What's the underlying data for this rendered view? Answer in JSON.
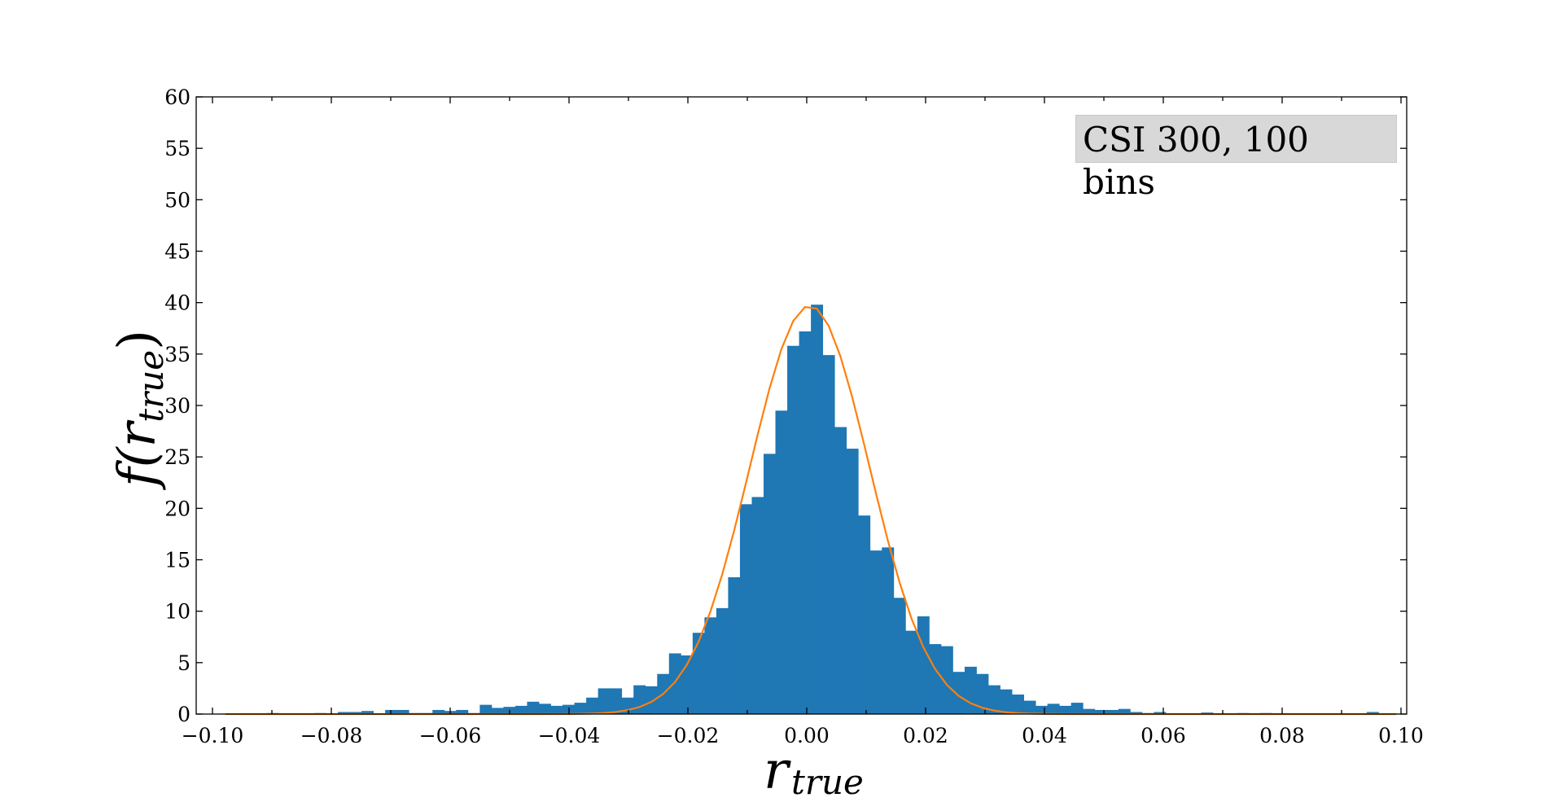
{
  "chart_data": {
    "type": "bar",
    "subtype": "histogram_with_fitted_normal",
    "annotation": "CSI 300, 100 bins",
    "xlabel": "r_true",
    "xlabel_main": "r",
    "xlabel_sub": "true",
    "ylabel": "f(r_true)",
    "ylabel_main": "f(r",
    "ylabel_sub": "true",
    "ylabel_close": ")",
    "xlim": [
      -0.103,
      0.101
    ],
    "ylim": [
      0,
      60
    ],
    "xticks": [
      -0.1,
      -0.08,
      -0.06,
      -0.04,
      -0.02,
      0.0,
      0.02,
      0.04,
      0.06,
      0.08,
      0.1
    ],
    "xtick_labels": [
      "−0.10",
      "−0.08",
      "−0.06",
      "−0.04",
      "−0.02",
      "0.00",
      "0.02",
      "0.04",
      "0.06",
      "0.08",
      "0.10"
    ],
    "yticks": [
      0,
      5,
      10,
      15,
      20,
      25,
      30,
      35,
      40,
      45,
      50,
      55,
      60
    ],
    "ytick_labels": [
      "0",
      "5",
      "10",
      "15",
      "20",
      "25",
      "30",
      "35",
      "40",
      "45",
      "50",
      "55",
      "60"
    ],
    "grid": false,
    "legend": null,
    "bins": {
      "count": 100,
      "first_edge": -0.0988,
      "width": 0.00199,
      "values": [
        0.05,
        0.0,
        0.05,
        0.05,
        0.1,
        0.05,
        0.0,
        0.05,
        0.1,
        0.05,
        0.2,
        0.2,
        0.3,
        0.0,
        0.4,
        0.4,
        0.1,
        0.1,
        0.4,
        0.3,
        0.4,
        0.1,
        0.9,
        0.6,
        0.7,
        0.8,
        1.2,
        1.0,
        0.8,
        0.9,
        1.1,
        1.6,
        2.5,
        2.5,
        1.6,
        2.8,
        2.7,
        3.9,
        5.9,
        5.7,
        7.9,
        9.4,
        10.3,
        13.3,
        20.4,
        21.1,
        25.3,
        29.5,
        35.8,
        37.2,
        39.8,
        34.9,
        27.9,
        25.8,
        19.3,
        15.9,
        16.2,
        11.3,
        8.1,
        9.5,
        6.8,
        6.6,
        4.1,
        4.6,
        3.9,
        2.8,
        2.4,
        1.9,
        1.3,
        0.8,
        1.0,
        0.8,
        1.1,
        0.5,
        0.4,
        0.4,
        0.5,
        0.2,
        0.1,
        0.2,
        0.0,
        0.05,
        0.0,
        0.15,
        0.0,
        0.05,
        0.1,
        0.0,
        0.1,
        0.0,
        0.05,
        0.0,
        0.0,
        0.05,
        0.0,
        0.05,
        0.0,
        0.2,
        0.0,
        0.05
      ],
      "color": "#1f77b4"
    },
    "fit_curve": {
      "type": "normal_pdf",
      "mean": 0.0005,
      "std": 0.01005,
      "peak": 39.7,
      "x_range": [
        -0.0978,
        0.0993
      ],
      "color": "#ff7f0e"
    },
    "series": [
      {
        "name": "histogram",
        "type": "bar",
        "color": "#1f77b4"
      },
      {
        "name": "normal fit",
        "type": "line",
        "color": "#ff7f0e"
      }
    ]
  }
}
